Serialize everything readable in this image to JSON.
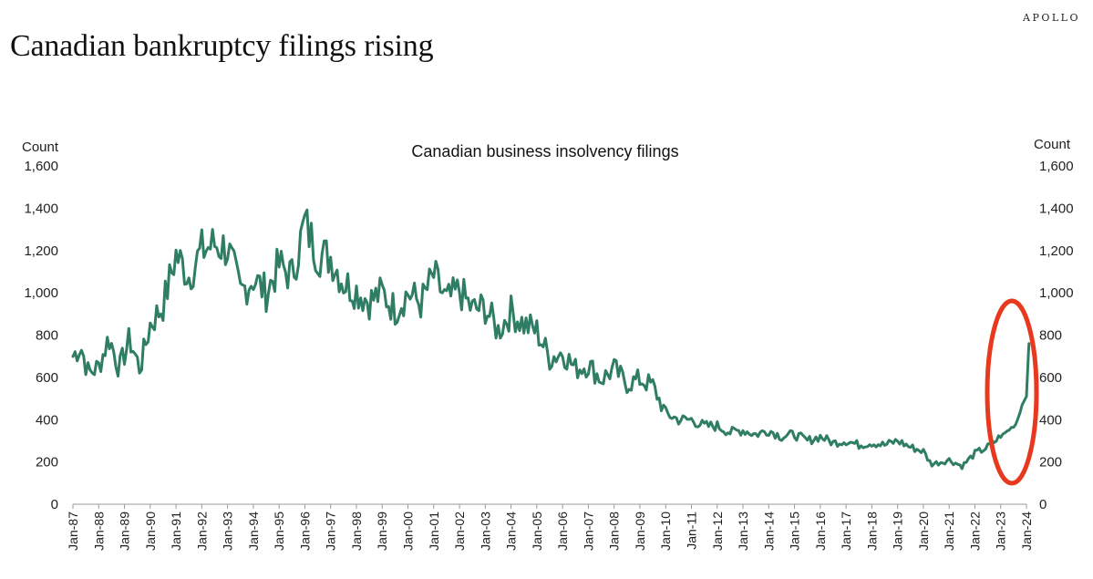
{
  "brand": "APOLLO",
  "headline": "Canadian bankruptcy filings rising",
  "colors": {
    "line": "#2e7d64",
    "highlight": "#e8391f"
  },
  "chart_data": {
    "type": "line",
    "title": "Canadian business insolvency filings",
    "ylabel_left": "Count",
    "ylabel_right": "Count",
    "ylim": [
      0,
      1600
    ],
    "y_ticks": [
      0,
      200,
      400,
      600,
      800,
      1000,
      1200,
      1400,
      1600
    ],
    "y_tick_labels": [
      "0",
      "200",
      "400",
      "600",
      "800",
      "1,000",
      "1,200",
      "1,400",
      "1,600"
    ],
    "x_tick_labels": [
      "Jan-87",
      "Jan-88",
      "Jan-89",
      "Jan-90",
      "Jan-91",
      "Jan-92",
      "Jan-93",
      "Jan-94",
      "Jan-95",
      "Jan-96",
      "Jan-97",
      "Jan-98",
      "Jan-99",
      "Jan-00",
      "Jan-01",
      "Jan-02",
      "Jan-03",
      "Jan-04",
      "Jan-05",
      "Jan-06",
      "Jan-07",
      "Jan-08",
      "Jan-09",
      "Jan-10",
      "Jan-11",
      "Jan-12",
      "Jan-13",
      "Jan-14",
      "Jan-15",
      "Jan-16",
      "Jan-17",
      "Jan-18",
      "Jan-19",
      "Jan-20",
      "Jan-21",
      "Jan-22",
      "Jan-23",
      "Jan-24"
    ],
    "x_start_year": 1987,
    "x_end_year": 2024,
    "anchor_points": [
      [
        1987.0,
        700
      ],
      [
        1987.3,
        750
      ],
      [
        1987.6,
        620
      ],
      [
        1988.0,
        650
      ],
      [
        1988.4,
        790
      ],
      [
        1988.8,
        640
      ],
      [
        1989.2,
        780
      ],
      [
        1989.6,
        640
      ],
      [
        1990.0,
        850
      ],
      [
        1990.5,
        940
      ],
      [
        1991.0,
        1180
      ],
      [
        1991.5,
        1080
      ],
      [
        1992.0,
        1200
      ],
      [
        1992.5,
        1230
      ],
      [
        1993.0,
        1210
      ],
      [
        1993.5,
        1000
      ],
      [
        1994.0,
        1070
      ],
      [
        1994.5,
        1000
      ],
      [
        1995.0,
        1130
      ],
      [
        1995.5,
        1080
      ],
      [
        1996.0,
        1330
      ],
      [
        1996.5,
        1180
      ],
      [
        1997.0,
        1170
      ],
      [
        1997.5,
        1050
      ],
      [
        1998.0,
        1010
      ],
      [
        1998.5,
        960
      ],
      [
        1999.0,
        1000
      ],
      [
        1999.5,
        920
      ],
      [
        2000.0,
        1000
      ],
      [
        2000.5,
        950
      ],
      [
        2001.0,
        1080
      ],
      [
        2001.5,
        960
      ],
      [
        2002.0,
        1010
      ],
      [
        2002.5,
        920
      ],
      [
        2003.0,
        930
      ],
      [
        2003.5,
        820
      ],
      [
        2004.0,
        910
      ],
      [
        2004.5,
        850
      ],
      [
        2005.0,
        820
      ],
      [
        2005.5,
        690
      ],
      [
        2006.0,
        720
      ],
      [
        2006.5,
        640
      ],
      [
        2007.0,
        660
      ],
      [
        2007.5,
        590
      ],
      [
        2008.0,
        640
      ],
      [
        2008.5,
        570
      ],
      [
        2009.0,
        590
      ],
      [
        2009.5,
        560
      ],
      [
        2010.0,
        430
      ],
      [
        2010.5,
        400
      ],
      [
        2011.0,
        400
      ],
      [
        2011.5,
        370
      ],
      [
        2012.0,
        370
      ],
      [
        2012.5,
        340
      ],
      [
        2013.0,
        350
      ],
      [
        2013.5,
        330
      ],
      [
        2014.0,
        350
      ],
      [
        2014.5,
        320
      ],
      [
        2015.0,
        330
      ],
      [
        2015.5,
        300
      ],
      [
        2016.0,
        320
      ],
      [
        2016.5,
        290
      ],
      [
        2017.0,
        300
      ],
      [
        2017.5,
        280
      ],
      [
        2018.0,
        290
      ],
      [
        2018.5,
        280
      ],
      [
        2019.0,
        300
      ],
      [
        2019.5,
        270
      ],
      [
        2020.0,
        250
      ],
      [
        2020.3,
        190
      ],
      [
        2020.7,
        200
      ],
      [
        2021.0,
        210
      ],
      [
        2021.5,
        180
      ],
      [
        2022.0,
        240
      ],
      [
        2022.5,
        270
      ],
      [
        2023.0,
        320
      ],
      [
        2023.3,
        350
      ],
      [
        2023.6,
        380
      ],
      [
        2023.8,
        460
      ],
      [
        2024.0,
        520
      ],
      [
        2024.1,
        760
      ]
    ]
  }
}
